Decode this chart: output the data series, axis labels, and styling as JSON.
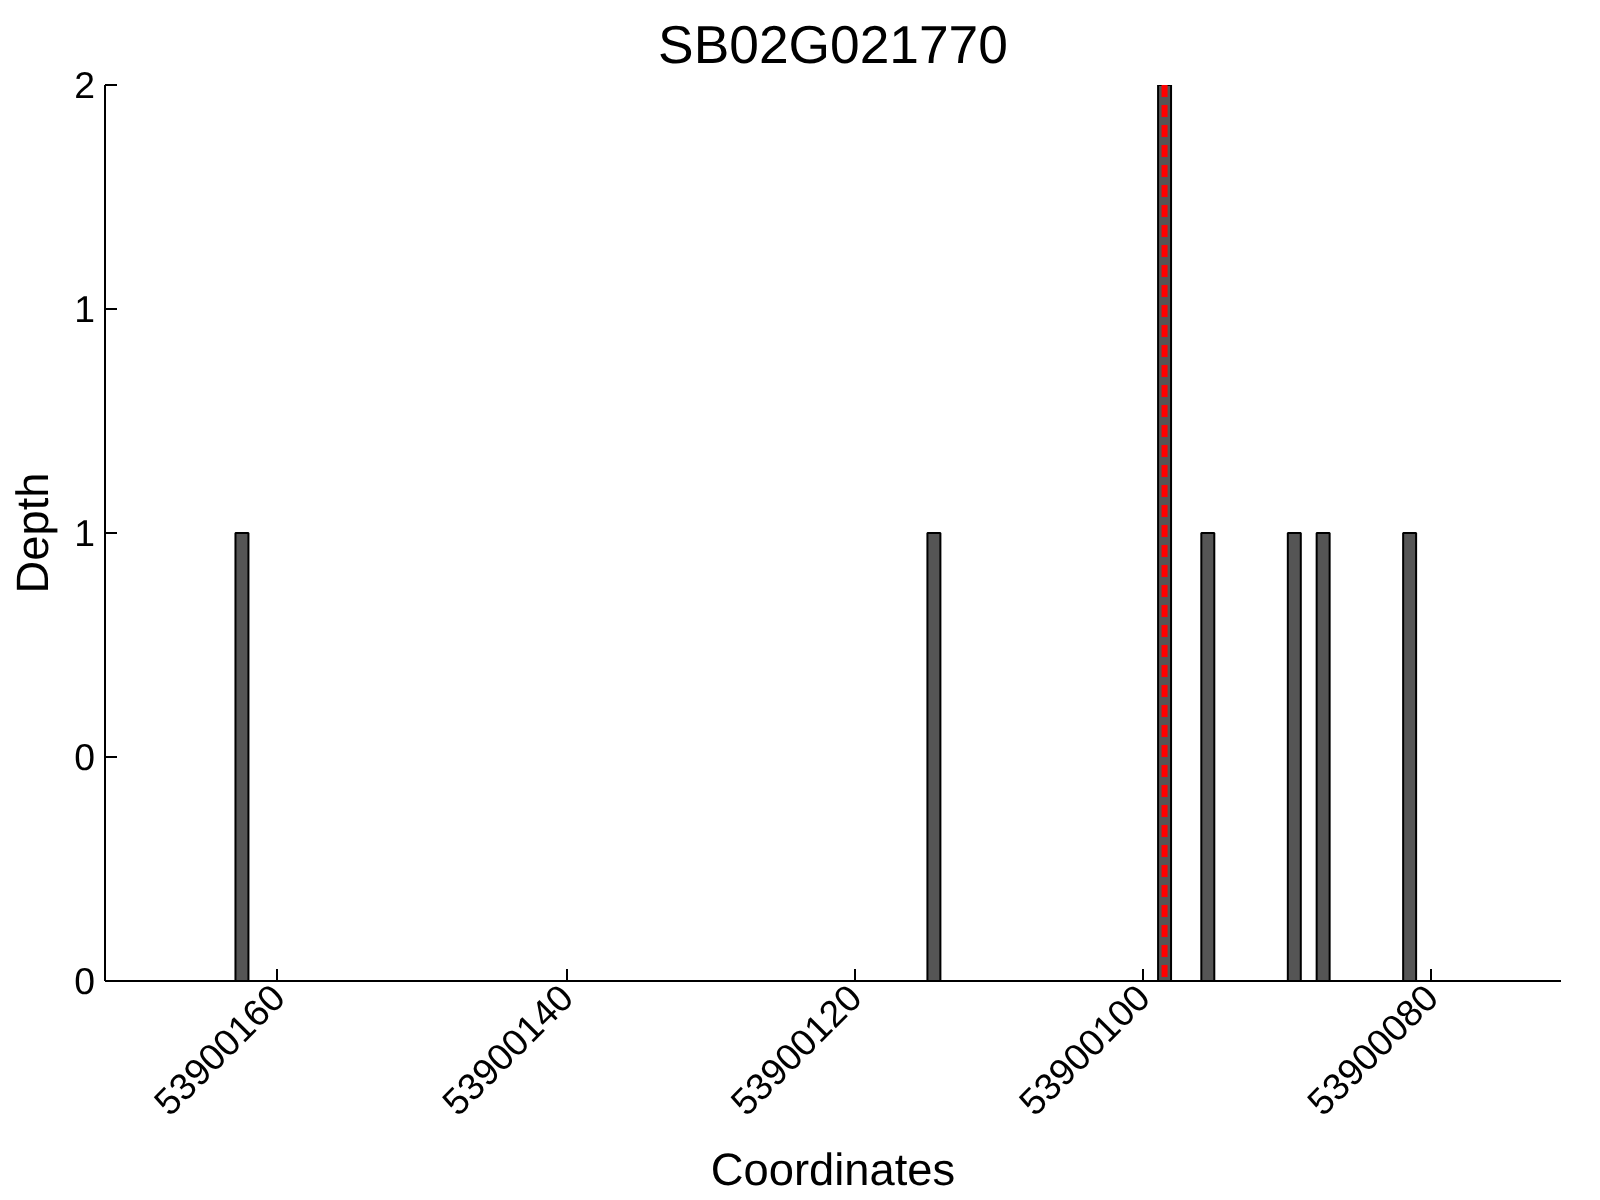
{
  "chart_data": {
    "type": "bar",
    "title": "SB02G021770",
    "xlabel": "Coordinates",
    "ylabel": "Depth",
    "x": [
      53900162.5,
      53900114.5,
      53900098.5,
      53900095.5,
      53900089.5,
      53900087.5,
      53900081.5
    ],
    "values": [
      1,
      1,
      2,
      1,
      1,
      1,
      1
    ],
    "color": "#555555",
    "xlim": [
      53900172,
      53900071
    ],
    "xticks": [
      53900160,
      53900140,
      53900120,
      53900100,
      53900080
    ],
    "ylim": [
      0,
      2
    ],
    "yticks": [
      {
        "value": 0,
        "label": "0"
      },
      {
        "value": 0.5,
        "label": "0"
      },
      {
        "value": 1,
        "label": "1"
      },
      {
        "value": 1.5,
        "label": "1"
      },
      {
        "value": 2,
        "label": "2"
      }
    ],
    "ref_lines": [
      {
        "axis": "x",
        "value": 53900098.5,
        "color": "#ff0000",
        "line_style": "dashed"
      }
    ],
    "grid": false
  }
}
